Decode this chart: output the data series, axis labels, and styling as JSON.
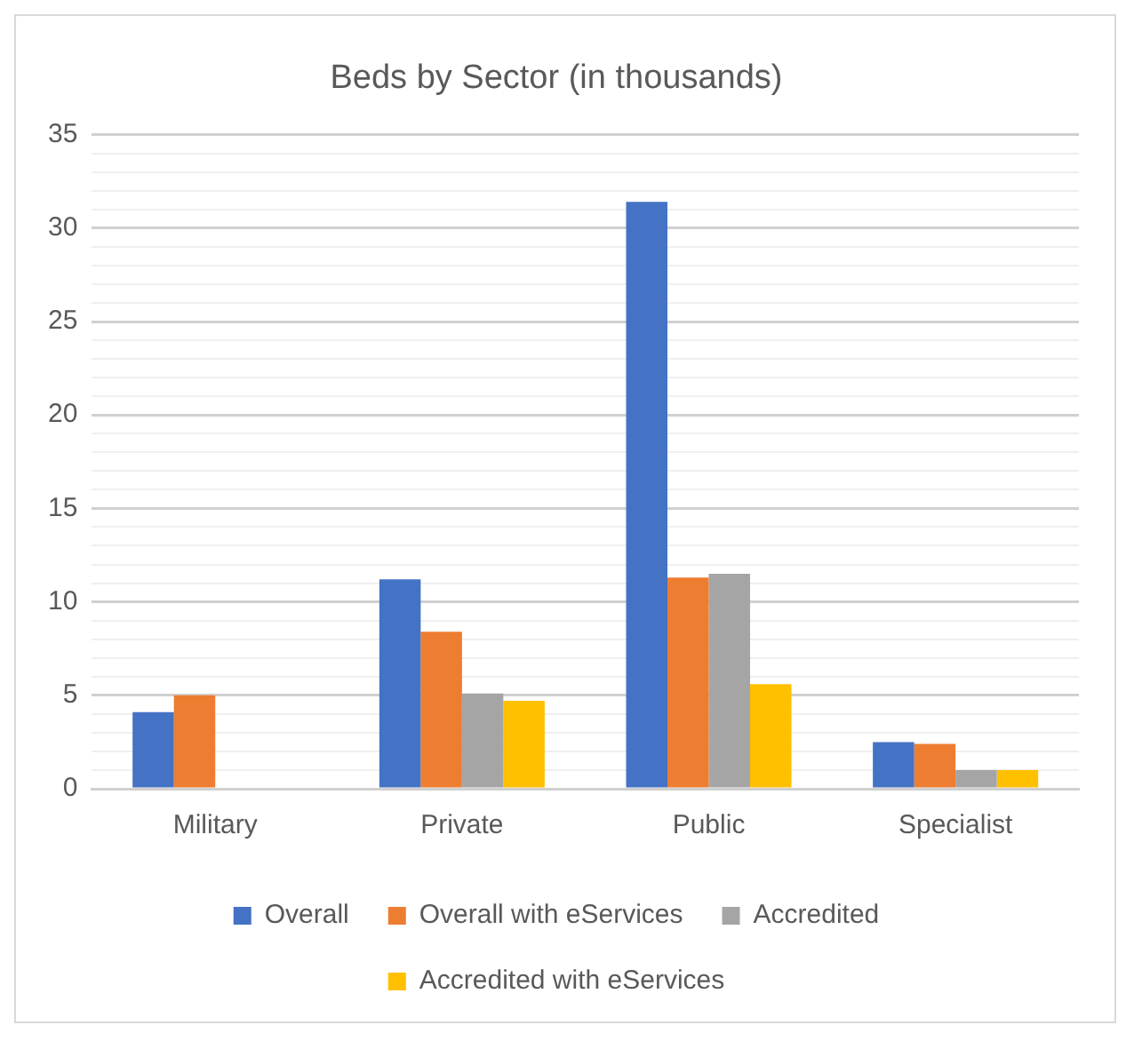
{
  "chart_data": {
    "type": "bar",
    "title": "Beds by Sector (in thousands)",
    "categories": [
      "Military",
      "Private",
      "Public",
      "Specialist"
    ],
    "series": [
      {
        "name": "Overall",
        "color": "#4472c4",
        "values": [
          4.1,
          11.2,
          31.4,
          2.5
        ]
      },
      {
        "name": "Overall with eServices",
        "color": "#ed7d31",
        "values": [
          5.0,
          8.4,
          11.3,
          2.4
        ]
      },
      {
        "name": "Accredited",
        "color": "#a5a5a5",
        "values": [
          null,
          5.1,
          11.5,
          1.0
        ]
      },
      {
        "name": "Accredited with eServices",
        "color": "#ffc000",
        "values": [
          null,
          4.7,
          5.6,
          1.0
        ]
      }
    ],
    "ylim": [
      0,
      35
    ],
    "yticks": [
      0,
      {
        "value": 1,
        "label": null
      },
      {
        "value": 2,
        "label": null
      },
      {
        "value": 3,
        "label": null
      },
      {
        "value": 4,
        "label": null
      },
      5,
      {
        "value": 6,
        "label": null
      },
      {
        "value": 7,
        "label": null
      },
      {
        "value": 8,
        "label": null
      },
      {
        "value": 9,
        "label": null
      },
      10,
      {
        "value": 11,
        "label": null
      },
      {
        "value": 12,
        "label": null
      },
      {
        "value": 13,
        "label": null
      },
      {
        "value": 14,
        "label": null
      },
      15,
      {
        "value": 16,
        "label": null
      },
      {
        "value": 17,
        "label": null
      },
      {
        "value": 18,
        "label": null
      },
      {
        "value": 19,
        "label": null
      },
      20,
      {
        "value": 21,
        "label": null
      },
      {
        "value": 22,
        "label": null
      },
      {
        "value": 23,
        "label": null
      },
      {
        "value": 24,
        "label": null
      },
      25,
      {
        "value": 26,
        "label": null
      },
      {
        "value": 27,
        "label": null
      },
      {
        "value": 28,
        "label": null
      },
      {
        "value": 29,
        "label": null
      },
      30,
      {
        "value": 31,
        "label": null
      },
      {
        "value": 32,
        "label": null
      },
      {
        "value": 33,
        "label": null
      },
      {
        "value": 34,
        "label": null
      },
      35
    ],
    "grid": "y",
    "legend": "bottom"
  }
}
